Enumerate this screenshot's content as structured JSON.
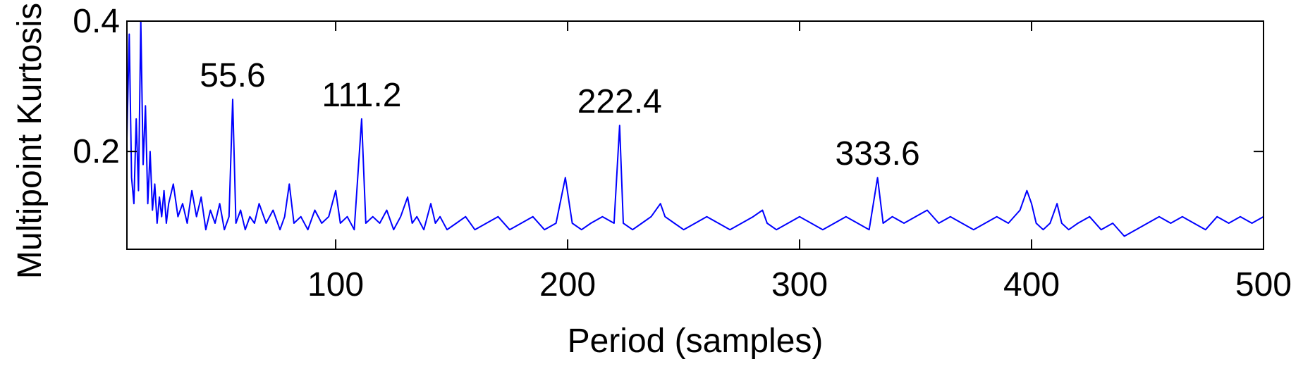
{
  "chart_data": {
    "type": "line",
    "title": "",
    "xlabel": "Period (samples)",
    "ylabel": "Multipoint Kurtosis",
    "xlim": [
      10,
      500
    ],
    "ylim": [
      0.05,
      0.4
    ],
    "xticks": [
      100,
      200,
      300,
      400,
      500
    ],
    "xtick_labels": [
      "100",
      "200",
      "300",
      "400",
      "500"
    ],
    "yticks": [
      0.2,
      0.4
    ],
    "ytick_labels": [
      "0.2",
      "0.4"
    ],
    "grid": false,
    "legend": "none",
    "colors": {
      "line": "#0000ff",
      "axes": "#000000",
      "background": "#ffffff"
    },
    "series": [
      {
        "x": [
          10,
          11,
          12,
          13,
          14,
          15,
          16,
          17,
          18,
          19,
          20,
          21,
          22,
          23,
          24,
          25,
          26,
          27,
          28,
          30,
          32,
          34,
          36,
          38,
          40,
          42,
          44,
          46,
          48,
          50,
          52,
          54,
          55.6,
          57,
          59,
          61,
          63,
          65,
          67,
          70,
          73,
          76,
          78,
          80,
          82,
          85,
          88,
          91,
          94,
          97,
          100,
          102,
          105,
          108,
          111.2,
          113,
          116,
          119,
          122,
          125,
          128,
          131,
          133,
          135,
          138,
          141,
          143,
          145,
          148,
          152,
          156,
          160,
          165,
          170,
          175,
          180,
          185,
          190,
          195,
          199,
          202,
          206,
          210,
          215,
          220,
          222.4,
          224,
          228,
          232,
          236,
          240,
          242,
          246,
          250,
          255,
          260,
          265,
          270,
          275,
          280,
          284,
          286,
          290,
          295,
          300,
          305,
          310,
          315,
          320,
          325,
          330,
          333.6,
          336,
          340,
          345,
          350,
          355,
          360,
          365,
          370,
          375,
          380,
          385,
          390,
          395,
          398,
          400,
          402,
          405,
          408,
          411,
          413,
          416,
          420,
          425,
          430,
          435,
          440,
          445,
          450,
          455,
          460,
          465,
          470,
          475,
          480,
          485,
          490,
          495,
          500
        ],
        "y": [
          0.22,
          0.38,
          0.16,
          0.12,
          0.25,
          0.14,
          0.4,
          0.18,
          0.27,
          0.12,
          0.2,
          0.11,
          0.15,
          0.09,
          0.13,
          0.1,
          0.14,
          0.09,
          0.12,
          0.15,
          0.1,
          0.12,
          0.09,
          0.14,
          0.1,
          0.13,
          0.08,
          0.11,
          0.09,
          0.12,
          0.08,
          0.1,
          0.28,
          0.09,
          0.11,
          0.08,
          0.1,
          0.09,
          0.12,
          0.09,
          0.11,
          0.08,
          0.1,
          0.15,
          0.09,
          0.1,
          0.08,
          0.11,
          0.09,
          0.1,
          0.14,
          0.09,
          0.1,
          0.08,
          0.25,
          0.09,
          0.1,
          0.09,
          0.11,
          0.08,
          0.1,
          0.13,
          0.09,
          0.1,
          0.08,
          0.12,
          0.09,
          0.1,
          0.08,
          0.09,
          0.1,
          0.08,
          0.09,
          0.1,
          0.08,
          0.09,
          0.1,
          0.08,
          0.09,
          0.16,
          0.09,
          0.08,
          0.09,
          0.1,
          0.09,
          0.24,
          0.09,
          0.08,
          0.09,
          0.1,
          0.12,
          0.1,
          0.09,
          0.08,
          0.09,
          0.1,
          0.09,
          0.08,
          0.09,
          0.1,
          0.11,
          0.09,
          0.08,
          0.09,
          0.1,
          0.09,
          0.08,
          0.09,
          0.1,
          0.09,
          0.08,
          0.16,
          0.09,
          0.1,
          0.09,
          0.1,
          0.11,
          0.09,
          0.1,
          0.09,
          0.08,
          0.09,
          0.1,
          0.09,
          0.11,
          0.14,
          0.12,
          0.09,
          0.08,
          0.09,
          0.12,
          0.09,
          0.08,
          0.09,
          0.1,
          0.08,
          0.09,
          0.07,
          0.08,
          0.09,
          0.1,
          0.09,
          0.1,
          0.09,
          0.08,
          0.1,
          0.09,
          0.1,
          0.09,
          0.1
        ]
      }
    ],
    "annotations": [
      {
        "text": "55.6",
        "x": 55.6,
        "y": 0.28
      },
      {
        "text": "111.2",
        "x": 111.2,
        "y": 0.25
      },
      {
        "text": "222.4",
        "x": 222.4,
        "y": 0.24
      },
      {
        "text": "333.6",
        "x": 333.6,
        "y": 0.16
      }
    ]
  }
}
